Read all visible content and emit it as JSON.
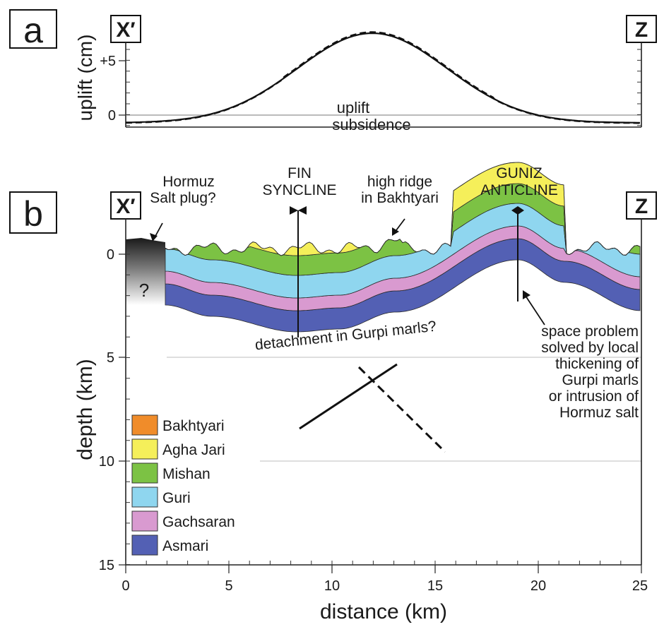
{
  "panel_a": {
    "letter": "a",
    "left_marker": "X′",
    "right_marker": "Z",
    "ylabel": "uplift (cm)",
    "y_ticks": [
      {
        "value": 5,
        "label": "+5"
      },
      {
        "value": 0,
        "label": "0"
      }
    ],
    "label_uplift": "uplift",
    "label_subsidence": "subsidence"
  },
  "panel_b": {
    "letter": "b",
    "left_marker": "X′",
    "right_marker": "Z",
    "ylabel": "depth (km)",
    "xlabel": "distance (km)",
    "x_ticks": [
      "0",
      "5",
      "10",
      "15",
      "20",
      "25"
    ],
    "y_ticks": [
      "0",
      "5",
      "10",
      "15"
    ],
    "annotations": {
      "salt_plug_1": "Hormuz",
      "salt_plug_2": "Salt plug?",
      "fin_1": "FIN",
      "fin_2": "SYNCLINE",
      "ridge_1": "high ridge",
      "ridge_2": "in Bakhtyari",
      "guniz_1": "GUNIZ",
      "guniz_2": "ANTICLINE",
      "question": "?",
      "detachment": "detachment in Gurpi marls?",
      "space_1": "space problem",
      "space_2": "solved by local",
      "space_3": "thickening of",
      "space_4": "Gurpi marls",
      "space_5": "or intrusion of",
      "space_6": "Hormuz salt"
    },
    "legend": [
      {
        "label": "Bakhtyari",
        "color": "#f08c2a"
      },
      {
        "label": "Agha Jari",
        "color": "#f5ef5a"
      },
      {
        "label": "Mishan",
        "color": "#7cc244"
      },
      {
        "label": "Guri",
        "color": "#8fd6ef"
      },
      {
        "label": "Gachsaran",
        "color": "#d99ad0"
      },
      {
        "label": "Asmari",
        "color": "#5360b4"
      }
    ]
  }
}
